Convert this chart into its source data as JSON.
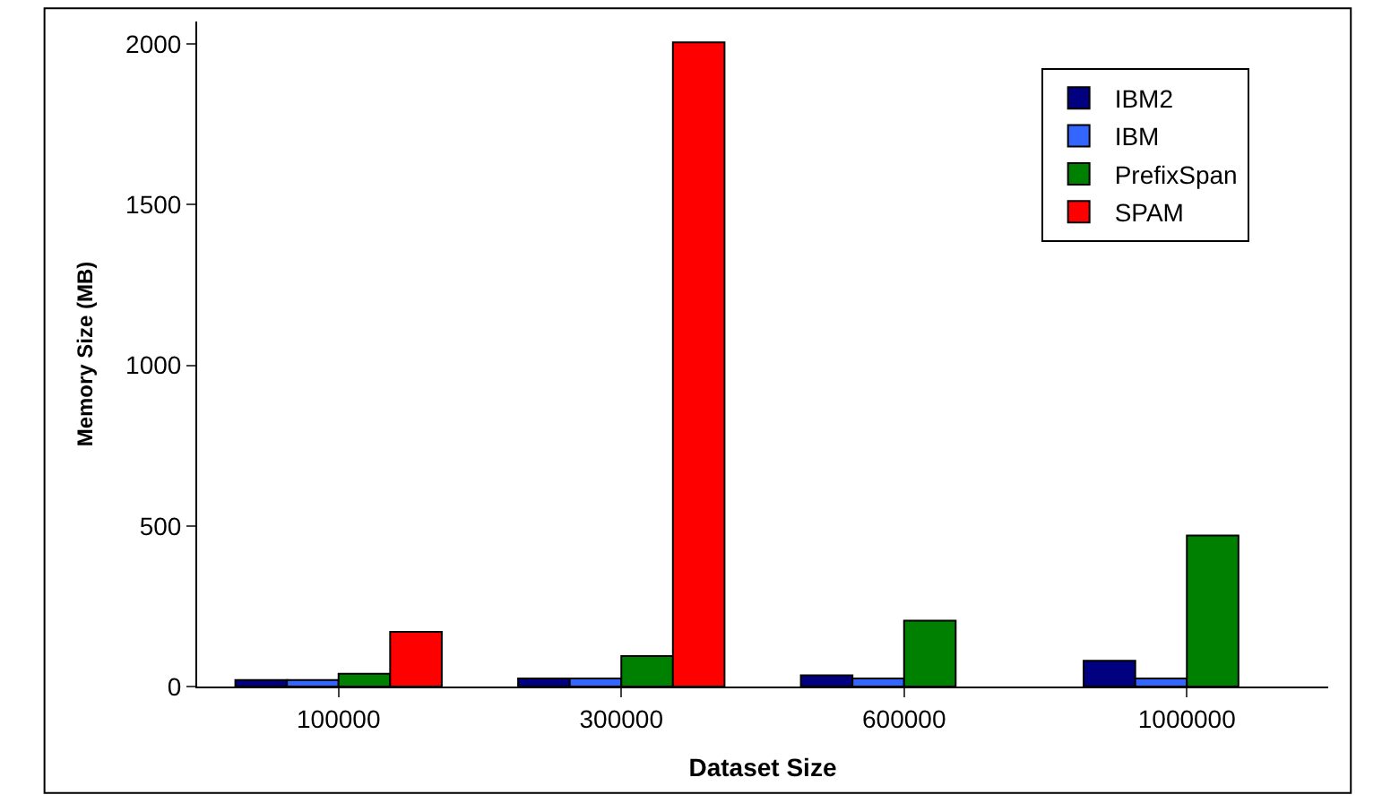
{
  "chart_data": {
    "type": "bar",
    "xlabel": "Dataset Size",
    "ylabel": "Memory Size (MB)",
    "categories": [
      "100000",
      "300000",
      "600000",
      "1000000"
    ],
    "series": [
      {
        "name": "IBM2",
        "color": "#000080",
        "values": [
          20,
          25,
          35,
          80
        ]
      },
      {
        "name": "IBM",
        "color": "#3366ff",
        "values": [
          20,
          25,
          25,
          25
        ]
      },
      {
        "name": "PrefixSpan",
        "color": "#008000",
        "values": [
          40,
          95,
          205,
          470
        ]
      },
      {
        "name": "SPAM",
        "color": "#ff0000",
        "values": [
          170,
          2005,
          null,
          null
        ]
      }
    ],
    "ylim": [
      0,
      2070
    ],
    "yticks": [
      0,
      500,
      1000,
      1500,
      2000
    ],
    "legend": "top right"
  }
}
